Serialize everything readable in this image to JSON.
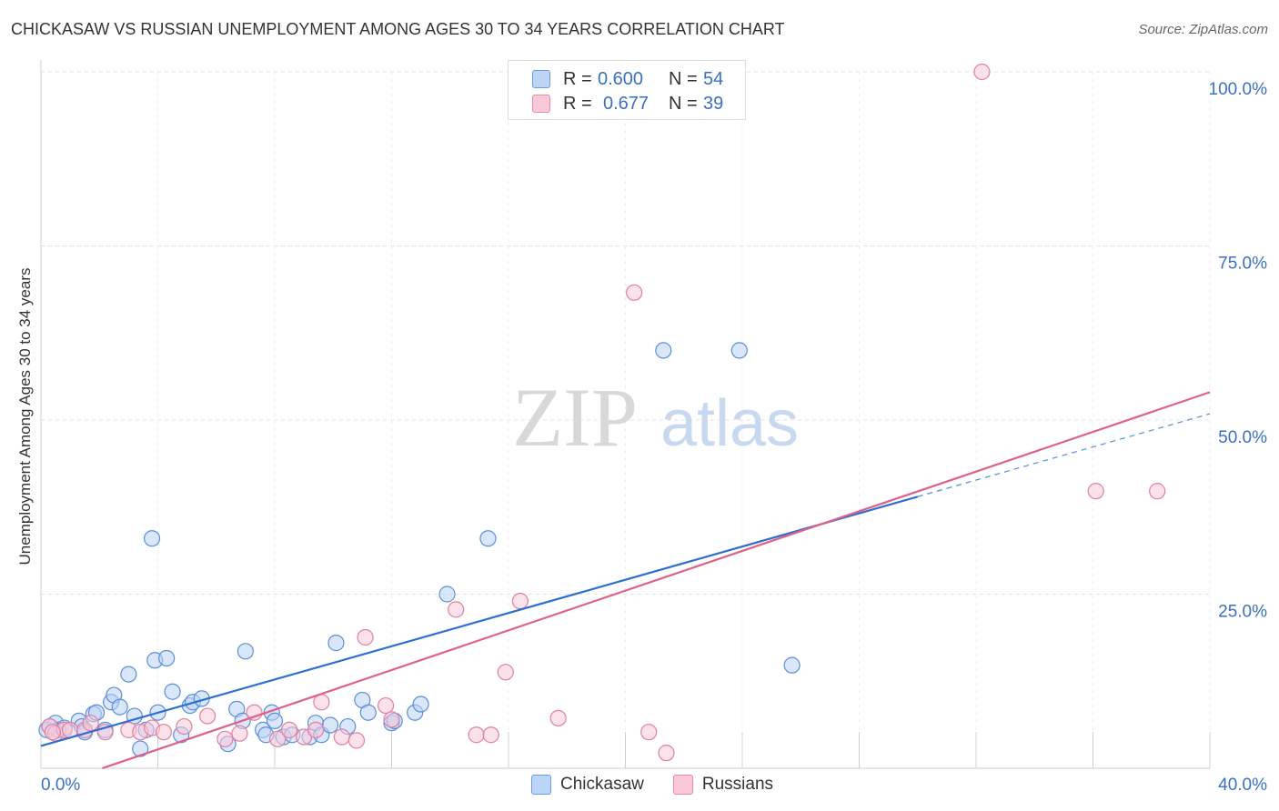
{
  "title": "CHICKASAW VS RUSSIAN UNEMPLOYMENT AMONG AGES 30 TO 34 YEARS CORRELATION CHART",
  "source": "Source: ZipAtlas.com",
  "watermark": {
    "zip": "ZIP",
    "atlas": "atlas"
  },
  "legend_top": [
    {
      "r_label": "R =",
      "r_value": "0.600",
      "n_label": "N =",
      "n_value": "54",
      "color": "#6a9be0",
      "fill": "#bcd4f5"
    },
    {
      "r_label": "R =",
      "r_value": "0.677",
      "n_label": "N =",
      "n_value": "39",
      "color": "#e88aa8",
      "fill": "#f8c8d8"
    }
  ],
  "legend_bottom": [
    {
      "name": "Chickasaw",
      "color": "#6a9be0",
      "fill": "#bcd4f5"
    },
    {
      "name": "Russians",
      "color": "#e88aa8",
      "fill": "#f8c8d8"
    }
  ],
  "chart_data": {
    "type": "scatter",
    "title": "CHICKASAW VS RUSSIAN UNEMPLOYMENT AMONG AGES 30 TO 34 YEARS CORRELATION CHART",
    "xlabel": "",
    "ylabel": "Unemployment Among Ages 30 to 34 years",
    "xlim": [
      0,
      40
    ],
    "ylim": [
      0,
      100
    ],
    "x_ticks": [
      "0.0%",
      "40.0%"
    ],
    "y_ticks": [
      "25.0%",
      "50.0%",
      "75.0%",
      "100.0%"
    ],
    "y_tick_values": [
      25,
      50,
      75,
      100
    ],
    "grid": true,
    "series": [
      {
        "name": "Chickasaw",
        "color": "#5b8fd8",
        "fill": "#bcd4f5",
        "trend": {
          "x0": 0,
          "y0": 3.2,
          "x1": 30,
          "y1": 39.0,
          "dash_to": 40,
          "dash_y": 50.9,
          "color": "#2d6fd0"
        },
        "points": [
          [
            0.2,
            5.5
          ],
          [
            0.5,
            6.5
          ],
          [
            0.6,
            5.5
          ],
          [
            0.8,
            5.8
          ],
          [
            1.3,
            6.8
          ],
          [
            1.4,
            6.0
          ],
          [
            1.5,
            5.2
          ],
          [
            1.8,
            7.8
          ],
          [
            1.9,
            8.0
          ],
          [
            2.2,
            5.5
          ],
          [
            2.4,
            9.5
          ],
          [
            2.5,
            10.5
          ],
          [
            2.7,
            8.8
          ],
          [
            3.0,
            13.5
          ],
          [
            3.2,
            7.5
          ],
          [
            3.4,
            2.8
          ],
          [
            3.6,
            5.5
          ],
          [
            3.8,
            33.0
          ],
          [
            3.9,
            15.5
          ],
          [
            4.0,
            8.0
          ],
          [
            4.3,
            15.8
          ],
          [
            4.5,
            11.0
          ],
          [
            4.8,
            4.8
          ],
          [
            5.1,
            9.0
          ],
          [
            5.2,
            9.5
          ],
          [
            5.5,
            10.0
          ],
          [
            6.4,
            3.5
          ],
          [
            6.7,
            8.5
          ],
          [
            6.9,
            6.8
          ],
          [
            7.0,
            16.8
          ],
          [
            7.6,
            5.5
          ],
          [
            7.7,
            4.8
          ],
          [
            7.9,
            8.0
          ],
          [
            8.0,
            6.8
          ],
          [
            8.3,
            4.5
          ],
          [
            8.6,
            4.8
          ],
          [
            9.2,
            4.5
          ],
          [
            9.4,
            6.5
          ],
          [
            9.6,
            4.8
          ],
          [
            9.9,
            6.2
          ],
          [
            10.1,
            18.0
          ],
          [
            10.5,
            6.0
          ],
          [
            11.0,
            9.8
          ],
          [
            11.2,
            8.0
          ],
          [
            12.0,
            6.5
          ],
          [
            12.1,
            6.8
          ],
          [
            12.8,
            8.0
          ],
          [
            13.0,
            9.2
          ],
          [
            13.9,
            25.0
          ],
          [
            15.3,
            33.0
          ],
          [
            21.3,
            60.0
          ],
          [
            23.9,
            60.0
          ],
          [
            25.7,
            14.8
          ],
          [
            0.3,
            6.0
          ]
        ]
      },
      {
        "name": "Russians",
        "color": "#e0809f",
        "fill": "#f8c8d8",
        "trend": {
          "x0": 2.1,
          "y0": 0,
          "x1": 40,
          "y1": 54.0,
          "color": "#e0608a"
        },
        "points": [
          [
            0.3,
            6.0
          ],
          [
            0.5,
            5.0
          ],
          [
            0.8,
            5.5
          ],
          [
            1.0,
            5.5
          ],
          [
            1.5,
            5.5
          ],
          [
            1.7,
            6.5
          ],
          [
            2.2,
            5.2
          ],
          [
            3.0,
            5.5
          ],
          [
            3.4,
            5.2
          ],
          [
            3.8,
            5.8
          ],
          [
            4.2,
            5.2
          ],
          [
            4.9,
            6.0
          ],
          [
            5.7,
            7.5
          ],
          [
            6.3,
            4.2
          ],
          [
            6.8,
            5.0
          ],
          [
            7.3,
            8.0
          ],
          [
            8.1,
            4.2
          ],
          [
            8.5,
            5.5
          ],
          [
            9.0,
            4.5
          ],
          [
            9.4,
            5.5
          ],
          [
            9.6,
            9.5
          ],
          [
            10.3,
            4.5
          ],
          [
            10.8,
            4.0
          ],
          [
            11.1,
            18.8
          ],
          [
            11.8,
            9.0
          ],
          [
            12.0,
            7.0
          ],
          [
            14.2,
            22.8
          ],
          [
            14.9,
            4.8
          ],
          [
            15.4,
            4.8
          ],
          [
            15.9,
            13.8
          ],
          [
            16.4,
            24.0
          ],
          [
            17.7,
            7.2
          ],
          [
            20.3,
            68.3
          ],
          [
            20.8,
            5.2
          ],
          [
            21.4,
            2.2
          ],
          [
            32.2,
            100.0
          ],
          [
            36.1,
            39.8
          ],
          [
            38.2,
            39.8
          ],
          [
            0.4,
            5.2
          ]
        ]
      }
    ]
  }
}
